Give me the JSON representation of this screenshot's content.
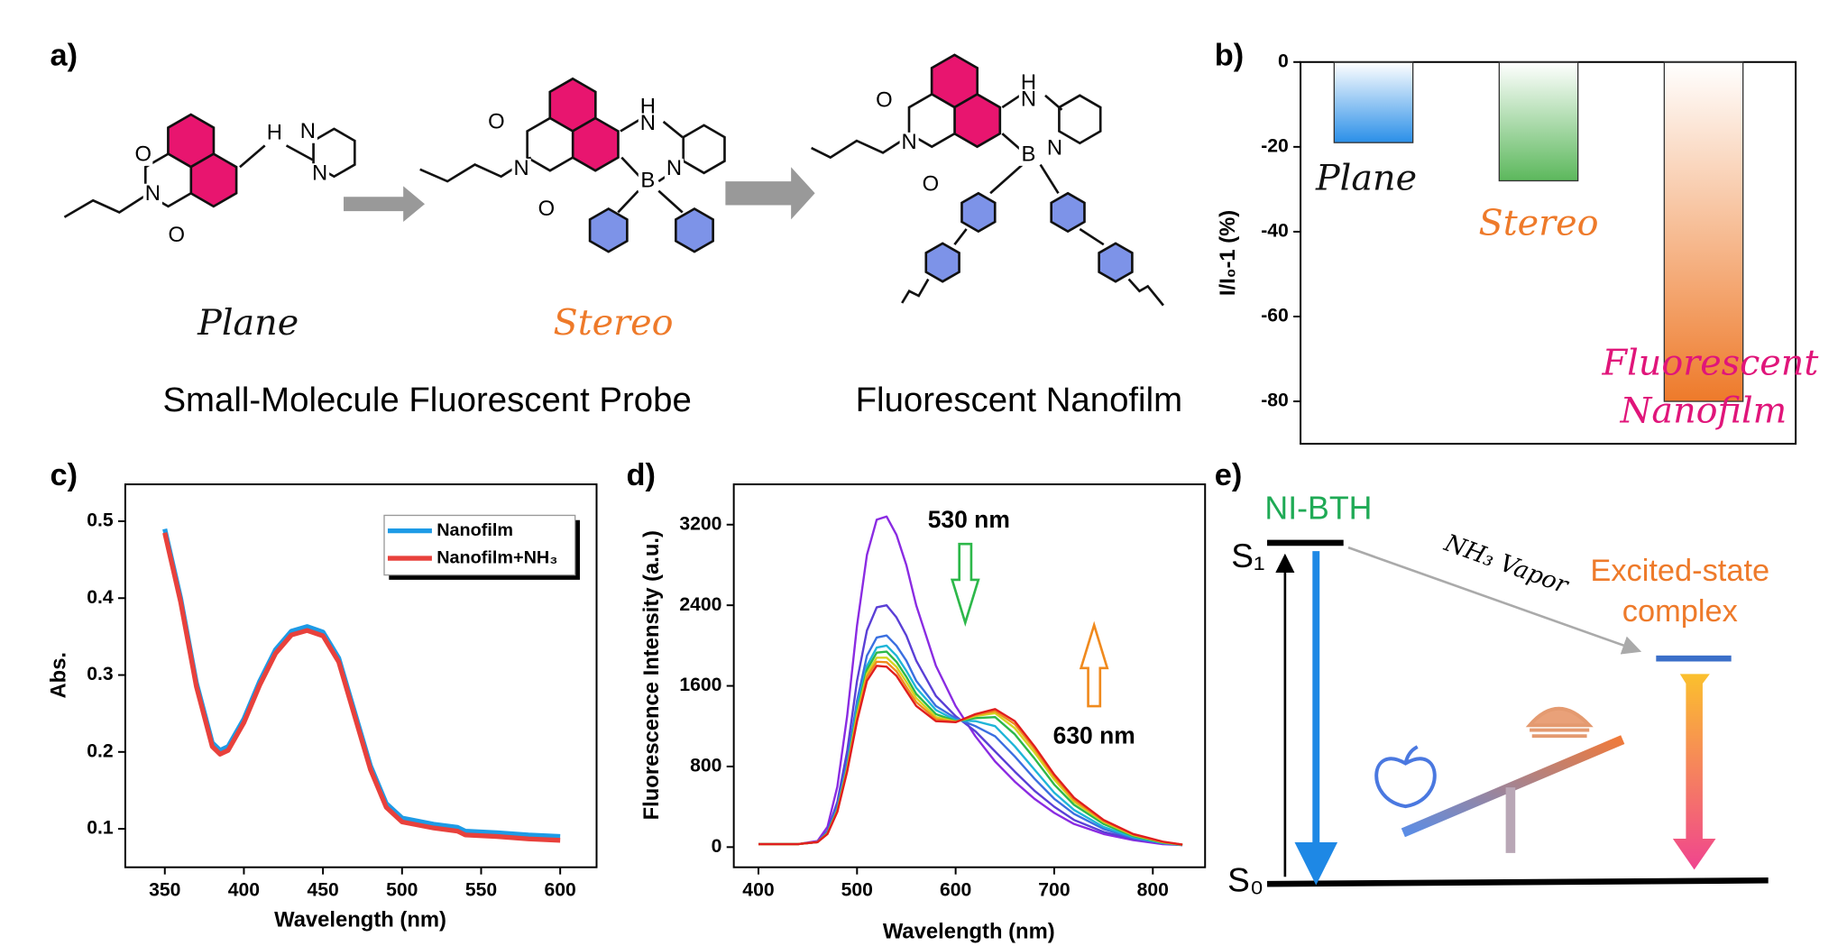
{
  "panel_a": {
    "label": "a)",
    "captions": [
      "Plane",
      "Stereo"
    ],
    "groups": [
      "Small-Molecule Fluorescent Probe",
      "Fluorescent Nanofilm"
    ],
    "molecules": [
      {
        "atoms": [
          "O",
          "N",
          "O",
          "H",
          "N",
          "N"
        ]
      },
      {
        "atoms": [
          "O",
          "N",
          "O",
          "H",
          "N",
          "B",
          "N"
        ]
      },
      {
        "atoms": [
          "O",
          "N",
          "O",
          "H",
          "N",
          "B",
          "N"
        ]
      }
    ]
  },
  "chart_data": [
    {
      "type": "bar",
      "panel_label": "b)",
      "ylabel": "I/I₀-1 (%)",
      "categories": [
        "Plane",
        "Stereo",
        "Fluorescent Nanofilm"
      ],
      "values": [
        -19,
        -28,
        -80
      ],
      "colors": [
        "#2a8fe8",
        "#5cb85c",
        "#ee7a2a"
      ],
      "label_colors": [
        "#111111",
        "#ee7a2a",
        "#e0157a"
      ],
      "ylim": [
        -90,
        0
      ],
      "yticks": [
        0,
        -20,
        -40,
        -60,
        -80
      ]
    },
    {
      "type": "line",
      "panel_label": "c)",
      "xlabel": "Wavelength (nm)",
      "ylabel": "Abs.",
      "x": [
        350,
        360,
        370,
        380,
        385,
        390,
        400,
        410,
        420,
        430,
        440,
        450,
        460,
        470,
        480,
        490,
        500,
        520,
        535,
        540,
        560,
        580,
        600
      ],
      "series": [
        {
          "name": "Nanofilm",
          "color": "#1e9be6",
          "values": [
            0.49,
            0.4,
            0.29,
            0.212,
            0.202,
            0.207,
            0.243,
            0.292,
            0.333,
            0.357,
            0.363,
            0.356,
            0.322,
            0.252,
            0.182,
            0.133,
            0.114,
            0.106,
            0.102,
            0.097,
            0.095,
            0.092,
            0.09
          ]
        },
        {
          "name": "Nanofilm+NH₃",
          "color": "#e8413c",
          "values": [
            0.485,
            0.395,
            0.285,
            0.207,
            0.197,
            0.202,
            0.238,
            0.287,
            0.328,
            0.352,
            0.358,
            0.351,
            0.317,
            0.247,
            0.177,
            0.128,
            0.109,
            0.101,
            0.097,
            0.092,
            0.09,
            0.087,
            0.085
          ]
        }
      ],
      "xlim": [
        325,
        623
      ],
      "xticks": [
        350,
        400,
        450,
        500,
        550,
        600
      ],
      "ylim": [
        0.05,
        0.548
      ],
      "yticks": [
        0.1,
        0.2,
        0.3,
        0.4,
        0.5
      ],
      "legend": "upper right"
    },
    {
      "type": "line",
      "panel_label": "d)",
      "xlabel": "Wavelength (nm)",
      "ylabel": "Fluorescence Intensity (a.u.)",
      "x": [
        400,
        440,
        460,
        470,
        480,
        490,
        500,
        510,
        520,
        530,
        540,
        550,
        560,
        580,
        600,
        620,
        640,
        660,
        680,
        700,
        720,
        750,
        780,
        810,
        830
      ],
      "series": [
        {
          "color": "#8a2be2",
          "values": [
            30,
            30,
            60,
            200,
            600,
            1300,
            2200,
            2900,
            3250,
            3280,
            3100,
            2800,
            2400,
            1800,
            1400,
            1100,
            850,
            650,
            480,
            340,
            230,
            130,
            70,
            30,
            20
          ]
        },
        {
          "color": "#5a3fd6",
          "values": [
            30,
            30,
            50,
            160,
            450,
            950,
            1650,
            2150,
            2380,
            2400,
            2280,
            2100,
            1850,
            1500,
            1300,
            1150,
            950,
            750,
            560,
            400,
            270,
            150,
            80,
            40,
            20
          ]
        },
        {
          "color": "#3a6fe0",
          "values": [
            30,
            30,
            50,
            150,
            400,
            850,
            1450,
            1900,
            2080,
            2100,
            2000,
            1850,
            1650,
            1400,
            1280,
            1200,
            1100,
            900,
            680,
            480,
            330,
            180,
            90,
            40,
            20
          ]
        },
        {
          "color": "#1fb5d8",
          "values": [
            30,
            30,
            50,
            140,
            380,
            800,
            1380,
            1800,
            1980,
            2000,
            1900,
            1750,
            1580,
            1360,
            1260,
            1250,
            1200,
            1000,
            770,
            540,
            370,
            200,
            100,
            40,
            20
          ]
        },
        {
          "color": "#2db84a",
          "values": [
            30,
            30,
            50,
            140,
            370,
            790,
            1340,
            1760,
            1930,
            1940,
            1840,
            1690,
            1520,
            1320,
            1250,
            1280,
            1290,
            1120,
            880,
            620,
            420,
            230,
            110,
            45,
            22
          ]
        },
        {
          "color": "#d4d41f",
          "values": [
            30,
            30,
            50,
            135,
            360,
            775,
            1310,
            1720,
            1880,
            1880,
            1790,
            1640,
            1480,
            1290,
            1245,
            1300,
            1330,
            1180,
            940,
            670,
            450,
            250,
            120,
            50,
            24
          ]
        },
        {
          "color": "#f08a1e",
          "values": [
            30,
            30,
            50,
            132,
            355,
            760,
            1280,
            1690,
            1840,
            1835,
            1745,
            1590,
            1440,
            1270,
            1242,
            1310,
            1350,
            1220,
            975,
            700,
            470,
            260,
            125,
            52,
            25
          ]
        },
        {
          "color": "#e01e1e",
          "values": [
            30,
            30,
            50,
            130,
            350,
            750,
            1250,
            1650,
            1800,
            1790,
            1700,
            1550,
            1400,
            1250,
            1240,
            1320,
            1370,
            1250,
            1000,
            720,
            490,
            270,
            130,
            55,
            25
          ]
        }
      ],
      "annotations": [
        "530 nm",
        "630 nm"
      ],
      "xlim": [
        375,
        853
      ],
      "xticks": [
        400,
        500,
        600,
        700,
        800
      ],
      "ylim": [
        -200,
        3600
      ],
      "yticks": [
        0,
        800,
        1600,
        2400,
        3200
      ]
    }
  ],
  "panel_e": {
    "label": "e)",
    "ground": "S₀",
    "excited": "S₁",
    "molecule": "NI-BTH",
    "process": "NH₃ Vapor",
    "complex": [
      "Excited-state",
      "complex"
    ]
  }
}
